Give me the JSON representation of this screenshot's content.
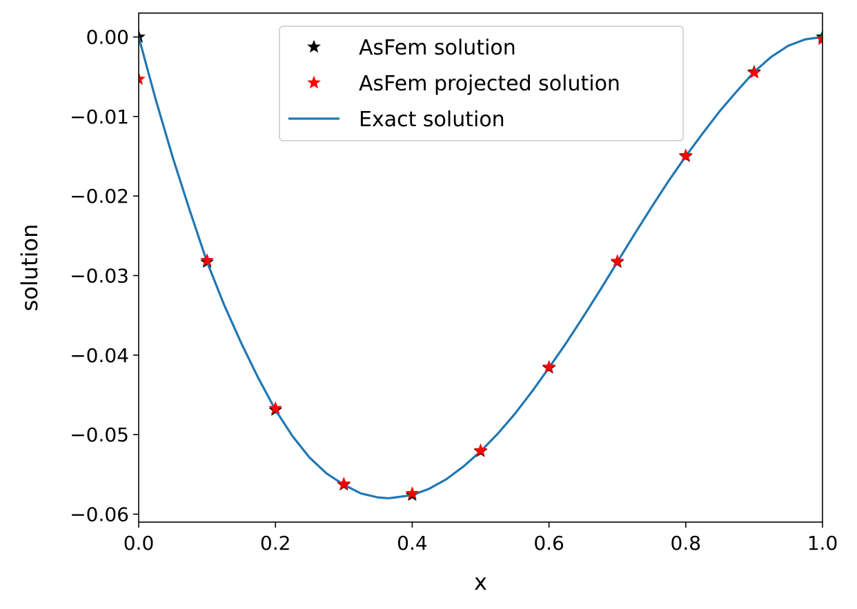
{
  "chart_data": {
    "type": "line",
    "title": "",
    "xlabel": "x",
    "ylabel": "solution",
    "xlim": [
      0.0,
      1.0
    ],
    "ylim": [
      -0.061,
      0.003
    ],
    "xticks": [
      0.0,
      0.2,
      0.4,
      0.6,
      0.8,
      1.0
    ],
    "xtick_labels": [
      "0.0",
      "0.2",
      "0.4",
      "0.6",
      "0.8",
      "1.0"
    ],
    "yticks": [
      0.0,
      -0.01,
      -0.02,
      -0.03,
      -0.04,
      -0.05,
      -0.06
    ],
    "ytick_labels": [
      "0.00",
      "−0.01",
      "−0.02",
      "−0.03",
      "−0.04",
      "−0.05",
      "−0.06"
    ],
    "grid": false,
    "legend_position": "upper-center",
    "series": [
      {
        "name": "AsFem solution",
        "style": "markers",
        "marker": "star",
        "color": "#000000",
        "x": [
          0.0,
          0.1,
          0.2,
          0.3,
          0.4,
          0.5,
          0.6,
          0.7,
          0.8,
          0.9,
          1.0
        ],
        "y": [
          0.0,
          -0.0283,
          -0.0469,
          -0.0563,
          -0.0576,
          -0.0521,
          -0.0416,
          -0.0283,
          -0.015,
          -0.0044,
          0.0
        ]
      },
      {
        "name": "AsFem projected solution",
        "style": "markers",
        "marker": "star",
        "color": "#ff0000",
        "x": [
          0.0,
          0.1,
          0.2,
          0.3,
          0.4,
          0.5,
          0.6,
          0.7,
          0.8,
          0.9,
          1.0
        ],
        "y": [
          -0.0053,
          -0.0281,
          -0.0467,
          -0.0562,
          -0.0574,
          -0.052,
          -0.0415,
          -0.0282,
          -0.0149,
          -0.0045,
          -0.0003
        ]
      },
      {
        "name": "Exact solution",
        "style": "line",
        "color": "#1f77b4",
        "x": [
          0.0,
          0.025,
          0.05,
          0.075,
          0.1,
          0.125,
          0.15,
          0.175,
          0.2,
          0.225,
          0.25,
          0.275,
          0.3,
          0.325,
          0.35,
          0.365,
          0.375,
          0.4,
          0.425,
          0.45,
          0.475,
          0.5,
          0.525,
          0.55,
          0.575,
          0.6,
          0.625,
          0.65,
          0.675,
          0.7,
          0.725,
          0.75,
          0.775,
          0.8,
          0.825,
          0.85,
          0.875,
          0.9,
          0.925,
          0.95,
          0.975,
          1.0
        ],
        "y": [
          0.0,
          -0.0079,
          -0.0152,
          -0.0219,
          -0.0283,
          -0.0337,
          -0.0385,
          -0.0429,
          -0.0469,
          -0.0502,
          -0.0529,
          -0.0549,
          -0.0563,
          -0.0574,
          -0.0579,
          -0.058,
          -0.0579,
          -0.0576,
          -0.0568,
          -0.0556,
          -0.054,
          -0.0521,
          -0.0499,
          -0.0474,
          -0.0446,
          -0.0416,
          -0.0385,
          -0.0352,
          -0.0318,
          -0.0283,
          -0.0248,
          -0.0214,
          -0.0181,
          -0.015,
          -0.0121,
          -0.0093,
          -0.0068,
          -0.0044,
          -0.0025,
          -0.0011,
          -0.0003,
          0.0
        ]
      }
    ]
  }
}
